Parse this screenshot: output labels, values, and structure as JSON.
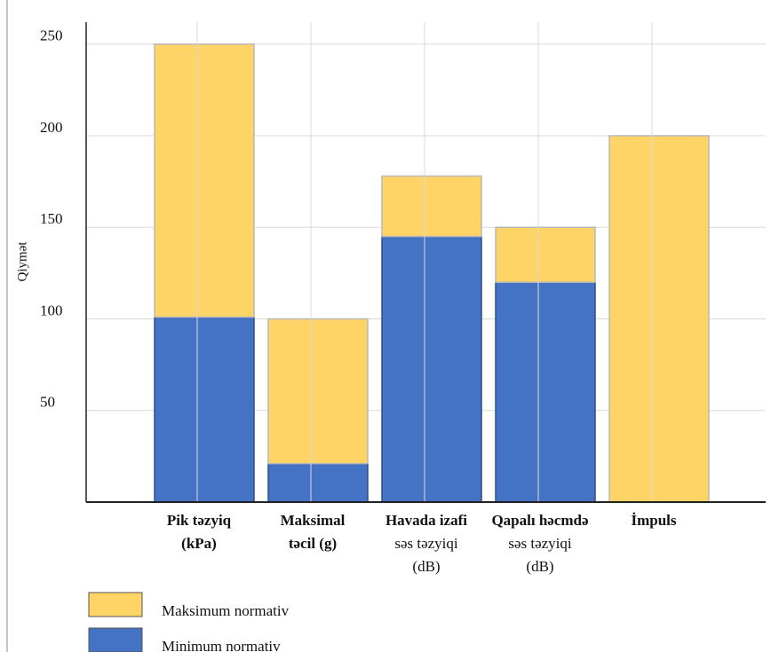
{
  "chart_data": {
    "type": "stacked_bar",
    "y_label": "Qiymət",
    "categories": [
      [
        "Pik təzyiq",
        "(kPa)"
      ],
      [
        "Maksimal",
        "təcil (g)"
      ],
      [
        "Havada izafi",
        "səs təzyiqi",
        "(dB)"
      ],
      [
        "Qapalı həcmdə",
        "səs təzyiqi",
        "(dB)"
      ],
      [
        "İmpuls"
      ]
    ],
    "series": [
      {
        "name": "Minimum normativ",
        "color": "#4472c4",
        "values": [
          101,
          21,
          145,
          120,
          0
        ]
      },
      {
        "name": "Maksimum normativ",
        "color": "#ffd466",
        "values": [
          149,
          79,
          33,
          30,
          200
        ]
      }
    ],
    "ylim": [
      0,
      262
    ],
    "yticks": [
      50,
      100,
      150,
      200,
      250
    ],
    "grid": true
  }
}
